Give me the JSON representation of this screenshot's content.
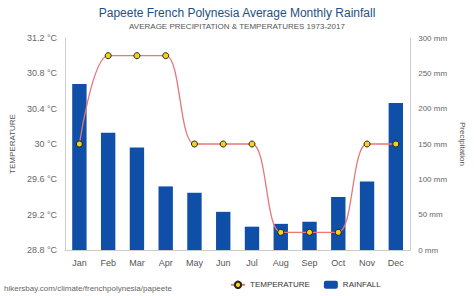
{
  "chart_data": {
    "type": "bar",
    "title": "Papeete French Polynesia Average Monthly Rainfall",
    "subtitle": "AVERAGE PRECIPITATION & TEMPERATURES 1973-2017",
    "annotations": [
      "hikersbay.com/climate/frenchpolynesia/papeete"
    ],
    "categories": [
      "Jan",
      "Feb",
      "Mar",
      "Apr",
      "May",
      "Jun",
      "Jul",
      "Aug",
      "Sep",
      "Oct",
      "Nov",
      "Dec"
    ],
    "ylabel": "TEMPERATURE",
    "y2label": "Precipitation",
    "series": [
      {
        "name": "TEMPERATURE",
        "type": "line",
        "color": "#e8767a",
        "marker": "circle",
        "values": [
          30,
          31,
          31,
          31,
          30,
          30,
          30,
          29,
          29,
          29,
          30,
          30
        ]
      },
      {
        "name": "RAINFALL",
        "type": "bar",
        "axis": "y2",
        "color": "#0f4fa8",
        "values": [
          235,
          166,
          145,
          90,
          81,
          54,
          33,
          37,
          40,
          75,
          97,
          208
        ]
      }
    ],
    "ylim": [
      28.8,
      31.2
    ],
    "yticks": [
      {
        "value": 28.8,
        "label": "28.8 °C"
      },
      {
        "value": 29.2,
        "label": "29.2 °C"
      },
      {
        "value": 29.6,
        "label": "29.6 °C"
      },
      {
        "value": 30,
        "label": "30 °C"
      },
      {
        "value": 30.4,
        "label": "30.4 °C"
      },
      {
        "value": 30.8,
        "label": "30.8 °C"
      },
      {
        "value": 31.2,
        "label": "31.2 °C"
      }
    ],
    "y2lim": [
      0,
      300
    ],
    "y2ticks": [
      {
        "value": 0,
        "label": "0 mm"
      },
      {
        "value": 50,
        "label": "50 mm"
      },
      {
        "value": 100,
        "label": "100 mm"
      },
      {
        "value": 150,
        "label": "150 mm"
      },
      {
        "value": 200,
        "label": "200 mm"
      },
      {
        "value": 250,
        "label": "250 mm"
      },
      {
        "value": 300,
        "label": "300 mm"
      }
    ],
    "grid": false,
    "legend": "bottom"
  }
}
